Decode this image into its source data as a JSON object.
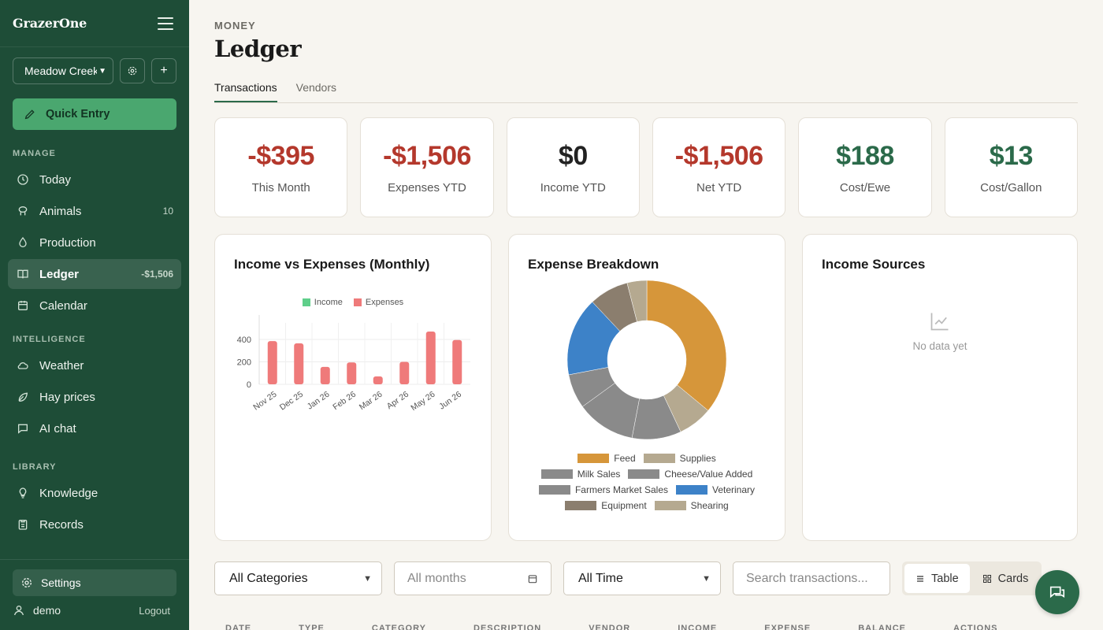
{
  "app": {
    "brand": "GrazerOne"
  },
  "sidebar": {
    "farm": "Meadow Creek Farm",
    "quick_entry": "Quick Entry",
    "sections": {
      "manage": "MANAGE",
      "intelligence": "INTELLIGENCE",
      "library": "LIBRARY"
    },
    "manage": [
      {
        "label": "Today",
        "icon": "clock-icon"
      },
      {
        "label": "Animals",
        "icon": "sheep-icon",
        "badge": "10"
      },
      {
        "label": "Production",
        "icon": "droplet-icon"
      },
      {
        "label": "Ledger",
        "icon": "book-icon",
        "badge": "-$1,506",
        "active": true
      },
      {
        "label": "Calendar",
        "icon": "calendar-icon"
      }
    ],
    "intelligence": [
      {
        "label": "Weather",
        "icon": "cloud-icon"
      },
      {
        "label": "Hay prices",
        "icon": "leaf-icon"
      },
      {
        "label": "AI chat",
        "icon": "chat-icon"
      }
    ],
    "library": [
      {
        "label": "Knowledge",
        "icon": "bulb-icon"
      },
      {
        "label": "Records",
        "icon": "clipboard-icon"
      }
    ],
    "settings": "Settings",
    "user": "demo",
    "logout": "Logout"
  },
  "header": {
    "eyebrow": "MONEY",
    "title": "Ledger",
    "tabs": [
      "Transactions",
      "Vendors"
    ]
  },
  "stats": [
    {
      "value": "-$395",
      "label": "This Month",
      "tone": "neg"
    },
    {
      "value": "-$1,506",
      "label": "Expenses YTD",
      "tone": "neg"
    },
    {
      "value": "$0",
      "label": "Income YTD",
      "tone": "zero"
    },
    {
      "value": "-$1,506",
      "label": "Net YTD",
      "tone": "neg"
    },
    {
      "value": "$188",
      "label": "Cost/Ewe",
      "tone": "pos"
    },
    {
      "value": "$13",
      "label": "Cost/Gallon",
      "tone": "pos"
    }
  ],
  "panels": {
    "income_vs_expenses": "Income vs Expenses (Monthly)",
    "expense_breakdown": "Expense Breakdown",
    "income_sources": "Income Sources",
    "empty_text": "No data yet"
  },
  "chart_data": [
    {
      "type": "bar",
      "title": "Income vs Expenses (Monthly)",
      "categories": [
        "Nov 25",
        "Dec 25",
        "Jan 26",
        "Feb 26",
        "Mar 26",
        "Apr 26",
        "May 26",
        "Jun 26"
      ],
      "series": [
        {
          "name": "Income",
          "color": "#5fcf8a",
          "values": [
            0,
            0,
            0,
            0,
            0,
            0,
            0,
            0
          ]
        },
        {
          "name": "Expenses",
          "color": "#ef7a7a",
          "values": [
            385,
            365,
            155,
            195,
            70,
            200,
            470,
            395
          ]
        }
      ],
      "yticks": [
        0,
        200,
        400
      ],
      "ylim": [
        0,
        500
      ],
      "legend": "top",
      "grid": true
    },
    {
      "type": "pie",
      "title": "Expense Breakdown",
      "slices": [
        {
          "label": "Feed",
          "value": 36,
          "color": "#d6963a"
        },
        {
          "label": "Supplies",
          "value": 7,
          "color": "#b5a990"
        },
        {
          "label": "Milk Sales",
          "value": 10,
          "color": "#8a8a8a"
        },
        {
          "label": "Cheese/Value Added",
          "value": 12,
          "color": "#8a8a8a"
        },
        {
          "label": "Farmers Market Sales",
          "value": 7,
          "color": "#8a8a8a"
        },
        {
          "label": "Veterinary",
          "value": 16,
          "color": "#3d82c8"
        },
        {
          "label": "Equipment",
          "value": 8,
          "color": "#8b7e6e"
        },
        {
          "label": "Shearing",
          "value": 4,
          "color": "#b5a990"
        }
      ],
      "legend": "bottom"
    }
  ],
  "filters": {
    "category": "All Categories",
    "months_placeholder": "All months",
    "period": "All Time",
    "search_placeholder": "Search transactions...",
    "view_table": "Table",
    "view_cards": "Cards"
  },
  "table_headers": [
    "DATE",
    "TYPE",
    "CATEGORY",
    "DESCRIPTION",
    "VENDOR",
    "INCOME",
    "EXPENSE",
    "BALANCE",
    "ACTIONS"
  ]
}
